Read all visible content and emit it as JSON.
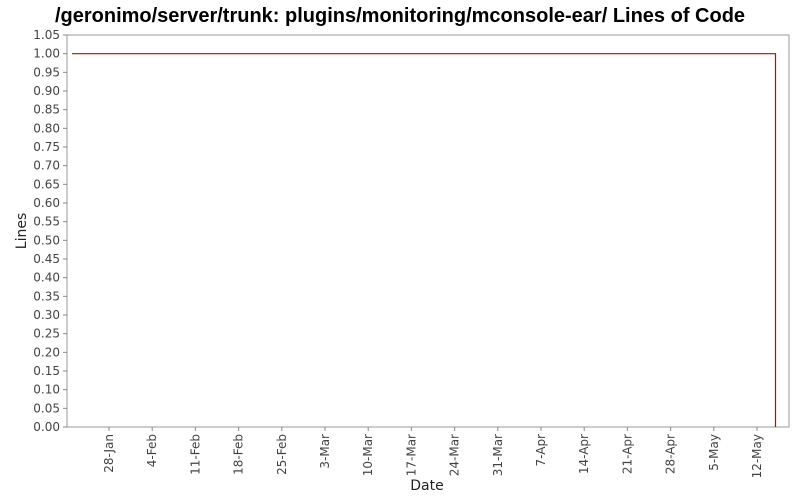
{
  "chart_data": {
    "type": "line",
    "title": "/geronimo/server/trunk: plugins/monitoring/mconsole-ear/ Lines of Code",
    "xlabel": "Date",
    "ylabel": "Lines",
    "ylim": [
      0,
      1.05
    ],
    "y_ticks": [
      "0.00",
      "0.05",
      "0.10",
      "0.15",
      "0.20",
      "0.25",
      "0.30",
      "0.35",
      "0.40",
      "0.45",
      "0.50",
      "0.55",
      "0.60",
      "0.65",
      "0.70",
      "0.75",
      "0.80",
      "0.85",
      "0.90",
      "0.95",
      "1.00",
      "1.05"
    ],
    "x_ticks": [
      "28-Jan",
      "4-Feb",
      "11-Feb",
      "18-Feb",
      "25-Feb",
      "3-Mar",
      "10-Mar",
      "17-Mar",
      "24-Mar",
      "31-Mar",
      "7-Apr",
      "14-Apr",
      "21-Apr",
      "28-Apr",
      "5-May",
      "12-May"
    ],
    "grid": false,
    "series": [
      {
        "color": "#cc0000",
        "x": [
          "22-Jan",
          "15-May",
          "15-May"
        ],
        "y": [
          1,
          1,
          0
        ]
      }
    ]
  }
}
